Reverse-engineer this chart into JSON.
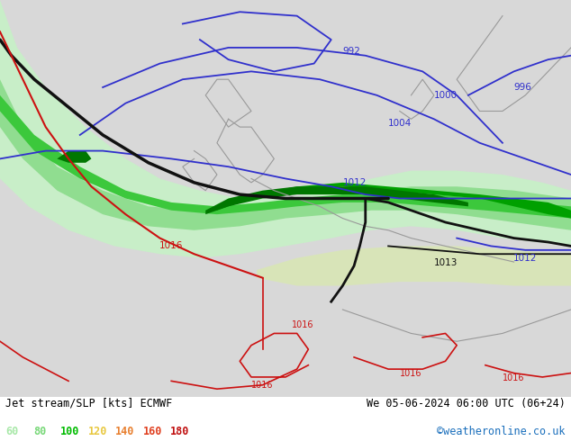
{
  "title_left": "Jet stream/SLP [kts] ECMWF",
  "title_right": "We 05-06-2024 06:00 UTC (06+24)",
  "credit": "©weatheronline.co.uk",
  "legend_values": [
    "60",
    "80",
    "100",
    "120",
    "140",
    "160",
    "180"
  ],
  "legend_colors": [
    "#a8e8a8",
    "#78d878",
    "#00bb00",
    "#e8c840",
    "#e88030",
    "#e04020",
    "#c01010"
  ],
  "bg_color": "#d8d8d8",
  "map_bg": "#d8d8d8",
  "figsize": [
    6.34,
    4.9
  ],
  "dpi": 100,
  "coast_color": "#999999",
  "blue_color": "#3030cc",
  "black_line_color": "#111111",
  "red_line_color": "#cc1111"
}
